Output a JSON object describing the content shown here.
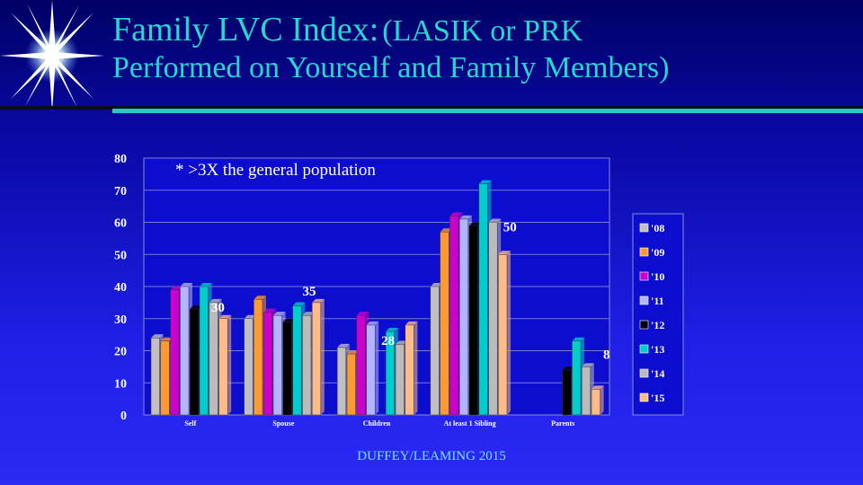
{
  "slide": {
    "title_main": "Family LVC Index:",
    "title_paren_1": "(LASIK or PRK",
    "title_paren_2": "Performed on Yourself and Family Members)",
    "footer": "DUFFEY/LEAMING 2015"
  },
  "colors": {
    "background": "#1414c8",
    "title": "#27d6cf",
    "plot_area": "#0d0dd0"
  },
  "chart_data": {
    "type": "bar",
    "annotation": "* >3X the general population",
    "categories": [
      "Self",
      "Spouse",
      "Children",
      "At least 1 Sibling",
      "Parents"
    ],
    "ylim": [
      0,
      80
    ],
    "yticks": [
      0,
      10,
      20,
      30,
      40,
      50,
      60,
      70,
      80
    ],
    "grid": true,
    "legend_position": "right",
    "series": [
      {
        "name": "'08",
        "color": "#c0c0c0",
        "values": [
          24,
          30,
          21,
          40,
          0
        ]
      },
      {
        "name": "'09",
        "color": "#ff9933",
        "values": [
          23,
          36,
          19,
          57,
          0
        ]
      },
      {
        "name": "'10",
        "color": "#cc00cc",
        "values": [
          39,
          32,
          31,
          62,
          0
        ]
      },
      {
        "name": "'11",
        "color": "#b3b3ff",
        "values": [
          40,
          31,
          28,
          61,
          0
        ]
      },
      {
        "name": "'12",
        "color": "#000000",
        "values": [
          33,
          29,
          0,
          59,
          14
        ]
      },
      {
        "name": "'13",
        "color": "#00cccc",
        "values": [
          40,
          34,
          26,
          72,
          23
        ]
      },
      {
        "name": "'14",
        "color": "#bbbbbb",
        "values": [
          35,
          31,
          22,
          60,
          15
        ]
      },
      {
        "name": "'15",
        "color": "#ffbb88",
        "values": [
          30,
          35,
          28,
          50,
          8
        ]
      }
    ],
    "value_labels": [
      {
        "category": "Self",
        "series": "'15",
        "text": "30"
      },
      {
        "category": "Spouse",
        "series": "'15",
        "text": "35"
      },
      {
        "category": "Children",
        "series": "'15",
        "text": "28"
      },
      {
        "category": "At least 1 Sibling",
        "series": "'15",
        "text": "50"
      },
      {
        "category": "Parents",
        "series": "'15",
        "text": "8"
      }
    ]
  }
}
